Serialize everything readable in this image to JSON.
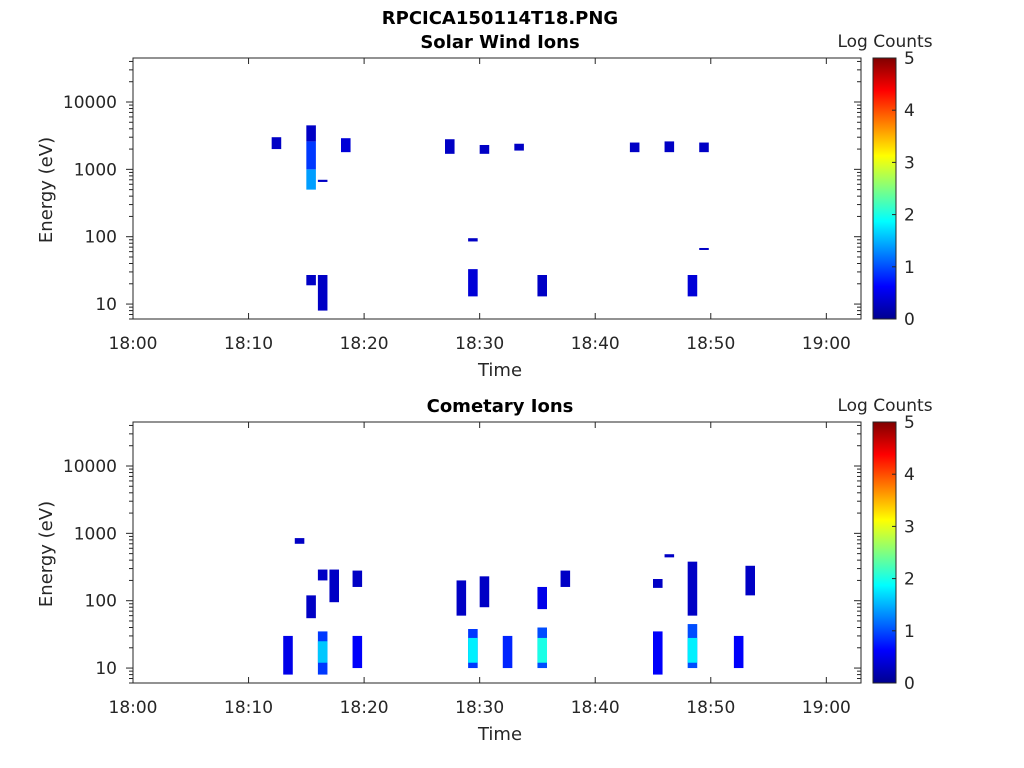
{
  "figure": {
    "filename": "RPCICA150114T18.PNG"
  },
  "colormap": {
    "name": "jet",
    "stops": [
      "#00008f",
      "#0000ff",
      "#0080ff",
      "#00ffff",
      "#80ff80",
      "#ffff00",
      "#ff8000",
      "#ff0000",
      "#800000"
    ]
  },
  "chart_data": [
    {
      "type": "heatmap",
      "title": "Solar Wind Ions",
      "xlabel": "Time",
      "ylabel": "Energy (eV)",
      "x_range": [
        "18:00",
        "19:03"
      ],
      "x_ticks": [
        "18:00",
        "18:10",
        "18:20",
        "18:30",
        "18:40",
        "18:50",
        "19:00"
      ],
      "y_scale": "log",
      "y_range": [
        6,
        45000
      ],
      "y_ticks": [
        "10",
        "100",
        "1000",
        "10000"
      ],
      "colorbar": {
        "label": "Log Counts",
        "range": [
          0,
          5
        ],
        "ticks": [
          "0",
          "1",
          "2",
          "3",
          "4",
          "5"
        ]
      },
      "cells": [
        [
          "18:12",
          2000,
          3000,
          0.3
        ],
        [
          "18:15",
          500,
          1000,
          1.4
        ],
        [
          "18:15",
          1000,
          2600,
          0.9
        ],
        [
          "18:15",
          2600,
          4500,
          0.3
        ],
        [
          "18:16",
          650,
          700,
          0.3
        ],
        [
          "18:18",
          1800,
          2900,
          0.4
        ],
        [
          "18:27",
          1700,
          2800,
          0.3
        ],
        [
          "18:30",
          1700,
          2300,
          0.3
        ],
        [
          "18:33",
          1900,
          2400,
          0.3
        ],
        [
          "18:43",
          1800,
          2500,
          0.3
        ],
        [
          "18:46",
          1800,
          2600,
          0.3
        ],
        [
          "18:49",
          1800,
          2500,
          0.3
        ],
        [
          "18:29",
          85,
          95,
          0.3
        ],
        [
          "18:49",
          64,
          68,
          0.3
        ],
        [
          "18:15",
          19,
          27,
          0.3
        ],
        [
          "18:16",
          8,
          27,
          0.3
        ],
        [
          "18:29",
          13,
          33,
          0.4
        ],
        [
          "18:35",
          13,
          27,
          0.3
        ],
        [
          "18:48",
          13,
          27,
          0.4
        ]
      ]
    },
    {
      "type": "heatmap",
      "title": "Cometary Ions",
      "xlabel": "Time",
      "ylabel": "Energy (eV)",
      "x_range": [
        "18:00",
        "19:03"
      ],
      "x_ticks": [
        "18:00",
        "18:10",
        "18:20",
        "18:30",
        "18:40",
        "18:50",
        "19:00"
      ],
      "y_scale": "log",
      "y_range": [
        6,
        45000
      ],
      "y_ticks": [
        "10",
        "100",
        "1000",
        "10000"
      ],
      "colorbar": {
        "label": "Log Counts",
        "range": [
          0,
          5
        ],
        "ticks": [
          "0",
          "1",
          "2",
          "3",
          "4",
          "5"
        ]
      },
      "cells": [
        [
          "18:13",
          8,
          30,
          0.5
        ],
        [
          "18:14",
          700,
          850,
          0.3
        ],
        [
          "18:15",
          55,
          120,
          0.3
        ],
        [
          "18:16",
          8,
          35,
          0.9
        ],
        [
          "18:16",
          12,
          25,
          1.6
        ],
        [
          "18:16",
          200,
          290,
          0.3
        ],
        [
          "18:17",
          95,
          290,
          0.3
        ],
        [
          "18:19",
          10,
          30,
          0.6
        ],
        [
          "18:19",
          160,
          280,
          0.3
        ],
        [
          "18:28",
          60,
          200,
          0.3
        ],
        [
          "18:29",
          10,
          38,
          0.9
        ],
        [
          "18:29",
          12,
          28,
          1.8
        ],
        [
          "18:30",
          80,
          230,
          0.3
        ],
        [
          "18:32",
          10,
          30,
          0.8
        ],
        [
          "18:35",
          10,
          40,
          1.0
        ],
        [
          "18:35",
          12,
          28,
          2.0
        ],
        [
          "18:35",
          75,
          160,
          0.5
        ],
        [
          "18:37",
          160,
          280,
          0.3
        ],
        [
          "18:45",
          8,
          35,
          0.6
        ],
        [
          "18:45",
          155,
          210,
          0.3
        ],
        [
          "18:46",
          440,
          490,
          0.3
        ],
        [
          "18:48",
          10,
          45,
          1.0
        ],
        [
          "18:48",
          12,
          28,
          1.8
        ],
        [
          "18:48",
          60,
          380,
          0.3
        ],
        [
          "18:52",
          10,
          30,
          0.6
        ],
        [
          "18:53",
          120,
          330,
          0.3
        ]
      ]
    }
  ]
}
